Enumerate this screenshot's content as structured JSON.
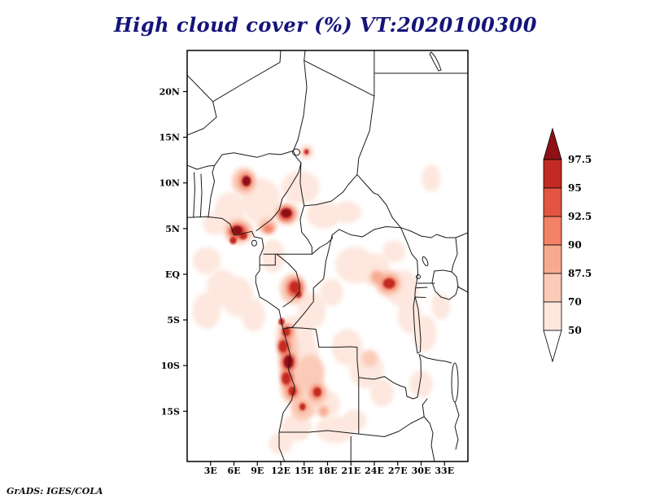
{
  "title": "High cloud cover (%) VT:2020100300",
  "footer": "GrADS: IGES/COLA",
  "colors": {
    "title_text": "#14147a",
    "border_lines": "#1a1a1a",
    "frame": "#000000"
  },
  "axes": {
    "x_ticks": [
      {
        "label": "3E",
        "lon": 3
      },
      {
        "label": "6E",
        "lon": 6
      },
      {
        "label": "9E",
        "lon": 9
      },
      {
        "label": "12E",
        "lon": 12
      },
      {
        "label": "15E",
        "lon": 15
      },
      {
        "label": "18E",
        "lon": 18
      },
      {
        "label": "21E",
        "lon": 21
      },
      {
        "label": "24E",
        "lon": 24
      },
      {
        "label": "27E",
        "lon": 27
      },
      {
        "label": "30E",
        "lon": 30
      },
      {
        "label": "33E",
        "lon": 33
      }
    ],
    "y_ticks": [
      {
        "label": "20N",
        "lat": 20
      },
      {
        "label": "15N",
        "lat": 15
      },
      {
        "label": "10N",
        "lat": 10
      },
      {
        "label": "5N",
        "lat": 5
      },
      {
        "label": "EQ",
        "lat": 0
      },
      {
        "label": "5S",
        "lat": -5
      },
      {
        "label": "10S",
        "lat": -10
      },
      {
        "label": "15S",
        "lat": -15
      }
    ]
  },
  "colorbar": {
    "labels": [
      "97.5",
      "95",
      "92.5",
      "90",
      "87.5",
      "70",
      "50"
    ]
  },
  "chart_data": {
    "type": "heatmap",
    "title": "High cloud cover (%) VT:2020100300",
    "variable": "High cloud cover",
    "units": "%",
    "valid_time": "2020100300",
    "lon_range": [
      0,
      36
    ],
    "lat_range": [
      -20.5,
      24.5
    ],
    "levels": [
      50,
      70,
      87.5,
      90,
      92.5,
      95,
      97.5
    ],
    "palette_low_to_high": [
      "#ffffff",
      "#fde7de",
      "#fbcbb8",
      "#f7aa8f",
      "#f28166",
      "#e35540",
      "#c22b24",
      "#8f1116"
    ],
    "hotspots": [
      {
        "lon": 14.5,
        "lat": 9.5,
        "rx": 2.5,
        "ry": 1.8,
        "v": 52
      },
      {
        "lon": 17.5,
        "lat": 6.5,
        "rx": 2.2,
        "ry": 1.5,
        "v": 55
      },
      {
        "lon": 20.5,
        "lat": 6.8,
        "rx": 1.8,
        "ry": 1.2,
        "v": 52
      },
      {
        "lon": 31.3,
        "lat": 10.5,
        "rx": 1.2,
        "ry": 1.5,
        "v": 52
      },
      {
        "lon": 21.5,
        "lat": 1.0,
        "rx": 2.5,
        "ry": 2.0,
        "v": 55
      },
      {
        "lon": 26.5,
        "lat": 2.5,
        "rx": 1.5,
        "ry": 1.2,
        "v": 52
      },
      {
        "lon": 2.5,
        "lat": 1.5,
        "rx": 1.8,
        "ry": 1.5,
        "v": 55
      },
      {
        "lon": 4.5,
        "lat": -1.5,
        "rx": 2.0,
        "ry": 2.0,
        "v": 55
      },
      {
        "lon": 2.5,
        "lat": -4.0,
        "rx": 1.8,
        "ry": 2.0,
        "v": 55
      },
      {
        "lon": 6.5,
        "lat": -2.5,
        "rx": 2.0,
        "ry": 2.2,
        "v": 58
      },
      {
        "lon": 8.5,
        "lat": -4.5,
        "rx": 1.5,
        "ry": 1.8,
        "v": 55
      },
      {
        "lon": 28.5,
        "lat": -4.5,
        "rx": 1.5,
        "ry": 2.0,
        "v": 52
      },
      {
        "lon": 30.5,
        "lat": -6.5,
        "rx": 1.5,
        "ry": 2.0,
        "v": 52
      },
      {
        "lon": 32.5,
        "lat": -3.5,
        "rx": 1.2,
        "ry": 1.5,
        "v": 52
      },
      {
        "lon": 30.0,
        "lat": -12.0,
        "rx": 1.5,
        "ry": 1.5,
        "v": 52
      },
      {
        "lon": 19.0,
        "lat": -17.0,
        "rx": 2.5,
        "ry": 1.5,
        "v": 55
      },
      {
        "lon": 14.0,
        "lat": -16.8,
        "rx": 2.0,
        "ry": 1.5,
        "v": 58
      },
      {
        "lon": 21.5,
        "lat": -16.0,
        "rx": 1.5,
        "ry": 1.2,
        "v": 52
      },
      {
        "lon": 12.0,
        "lat": -18.5,
        "rx": 1.5,
        "ry": 1.2,
        "v": 55
      },
      {
        "lon": 17.8,
        "lat": -14.2,
        "rx": 1.8,
        "ry": 1.5,
        "v": 58
      },
      {
        "lon": 20.5,
        "lat": -8.0,
        "rx": 2.0,
        "ry": 2.0,
        "v": 55
      },
      {
        "lon": 23.0,
        "lat": -10.5,
        "rx": 2.2,
        "ry": 2.0,
        "v": 58
      },
      {
        "lon": 25.0,
        "lat": -13.0,
        "rx": 1.5,
        "ry": 1.5,
        "v": 52
      },
      {
        "lon": 9.5,
        "lat": 8.0,
        "rx": 2.5,
        "ry": 2.5,
        "v": 55
      },
      {
        "lon": 5.5,
        "lat": 7.0,
        "rx": 2.0,
        "ry": 2.0,
        "v": 58
      },
      {
        "lon": 3.5,
        "lat": 5.5,
        "rx": 1.5,
        "ry": 1.2,
        "v": 55
      },
      {
        "lon": 11.0,
        "lat": 2.0,
        "rx": 1.5,
        "ry": 1.8,
        "v": 55
      },
      {
        "lon": 16.0,
        "lat": -4.0,
        "rx": 1.8,
        "ry": 2.0,
        "v": 58
      },
      {
        "lon": 18.5,
        "lat": -2.0,
        "rx": 1.5,
        "ry": 1.5,
        "v": 55
      },
      {
        "lon": 27.5,
        "lat": -1.5,
        "rx": 2.2,
        "ry": 2.0,
        "v": 60
      },
      {
        "lon": 24.0,
        "lat": 0.5,
        "rx": 2.0,
        "ry": 1.8,
        "v": 60
      },
      {
        "lon": 13.8,
        "lat": -6.5,
        "rx": 2.5,
        "ry": 2.0,
        "v": 62
      },
      {
        "lon": 14.8,
        "lat": -9.5,
        "rx": 2.2,
        "ry": 3.0,
        "v": 62
      },
      {
        "lon": 15.5,
        "lat": -13.5,
        "rx": 2.5,
        "ry": 2.0,
        "v": 62
      },
      {
        "lon": 7.3,
        "lat": 10.2,
        "rx": 1.6,
        "ry": 1.5,
        "v": 78
      },
      {
        "lon": 6.6,
        "lat": 4.7,
        "rx": 1.9,
        "ry": 1.4,
        "v": 80
      },
      {
        "lon": 12.8,
        "lat": 6.6,
        "rx": 1.5,
        "ry": 1.2,
        "v": 80
      },
      {
        "lon": 13.6,
        "lat": -1.6,
        "rx": 1.7,
        "ry": 1.7,
        "v": 80
      },
      {
        "lon": 25.8,
        "lat": -1.0,
        "rx": 1.7,
        "ry": 1.4,
        "v": 75
      },
      {
        "lon": 13.0,
        "lat": -9.0,
        "rx": 1.3,
        "ry": 3.5,
        "v": 80
      },
      {
        "lon": 13.6,
        "lat": -12.6,
        "rx": 1.6,
        "ry": 1.6,
        "v": 78
      },
      {
        "lon": 16.6,
        "lat": -13.0,
        "rx": 1.4,
        "ry": 1.4,
        "v": 75
      },
      {
        "lon": 14.8,
        "lat": -14.8,
        "rx": 1.5,
        "ry": 1.2,
        "v": 72
      },
      {
        "lon": 15.8,
        "lat": -10.8,
        "rx": 1.8,
        "ry": 2.0,
        "v": 70
      },
      {
        "lon": 10.3,
        "lat": 5.3,
        "rx": 1.2,
        "ry": 0.9,
        "v": 75
      },
      {
        "lon": 23.4,
        "lat": -9.2,
        "rx": 1.0,
        "ry": 0.9,
        "v": 72
      },
      {
        "lon": 15.3,
        "lat": 13.4,
        "rx": 0.8,
        "ry": 0.7,
        "v": 75
      },
      {
        "lon": 7.5,
        "lat": 10.2,
        "rx": 0.9,
        "ry": 0.9,
        "v": 91
      },
      {
        "lon": 6.5,
        "lat": 4.7,
        "rx": 1.2,
        "ry": 0.8,
        "v": 93
      },
      {
        "lon": 12.7,
        "lat": 6.6,
        "rx": 1.0,
        "ry": 0.8,
        "v": 93
      },
      {
        "lon": 13.8,
        "lat": -1.5,
        "rx": 1.0,
        "ry": 1.0,
        "v": 93
      },
      {
        "lon": 25.9,
        "lat": -1.0,
        "rx": 1.1,
        "ry": 0.8,
        "v": 91
      },
      {
        "lon": 12.8,
        "lat": -6.3,
        "rx": 0.8,
        "ry": 0.8,
        "v": 91
      },
      {
        "lon": 12.4,
        "lat": -7.9,
        "rx": 0.8,
        "ry": 0.9,
        "v": 93
      },
      {
        "lon": 13.0,
        "lat": -9.6,
        "rx": 0.9,
        "ry": 1.0,
        "v": 93
      },
      {
        "lon": 12.8,
        "lat": -11.4,
        "rx": 0.8,
        "ry": 0.9,
        "v": 93
      },
      {
        "lon": 13.5,
        "lat": -12.8,
        "rx": 0.8,
        "ry": 0.8,
        "v": 91
      },
      {
        "lon": 16.6,
        "lat": -12.9,
        "rx": 0.8,
        "ry": 0.8,
        "v": 91
      },
      {
        "lon": 14.8,
        "lat": -14.5,
        "rx": 0.7,
        "ry": 0.7,
        "v": 88
      },
      {
        "lon": 17.5,
        "lat": -15.0,
        "rx": 0.6,
        "ry": 0.6,
        "v": 88
      },
      {
        "lon": 10.4,
        "lat": 5.0,
        "rx": 0.7,
        "ry": 0.5,
        "v": 90
      },
      {
        "lon": 24.3,
        "lat": -0.3,
        "rx": 0.8,
        "ry": 0.7,
        "v": 88
      },
      {
        "lon": 7.6,
        "lat": 10.2,
        "rx": 0.55,
        "ry": 0.55,
        "v": 98
      },
      {
        "lon": 6.4,
        "lat": 4.8,
        "rx": 0.7,
        "ry": 0.5,
        "v": 98
      },
      {
        "lon": 7.2,
        "lat": 4.2,
        "rx": 0.5,
        "ry": 0.4,
        "v": 97
      },
      {
        "lon": 5.9,
        "lat": 3.7,
        "rx": 0.45,
        "ry": 0.4,
        "v": 97
      },
      {
        "lon": 12.7,
        "lat": 6.7,
        "rx": 0.7,
        "ry": 0.5,
        "v": 98
      },
      {
        "lon": 15.3,
        "lat": 13.4,
        "rx": 0.3,
        "ry": 0.3,
        "v": 96
      },
      {
        "lon": 13.8,
        "lat": -1.4,
        "rx": 0.6,
        "ry": 0.6,
        "v": 97
      },
      {
        "lon": 14.3,
        "lat": -2.2,
        "rx": 0.4,
        "ry": 0.4,
        "v": 96
      },
      {
        "lon": 25.9,
        "lat": -1.0,
        "rx": 0.75,
        "ry": 0.55,
        "v": 96
      },
      {
        "lon": 12.7,
        "lat": -6.3,
        "rx": 0.5,
        "ry": 0.5,
        "v": 96
      },
      {
        "lon": 12.3,
        "lat": -7.9,
        "rx": 0.5,
        "ry": 0.6,
        "v": 97
      },
      {
        "lon": 13.0,
        "lat": -9.6,
        "rx": 0.6,
        "ry": 0.7,
        "v": 98
      },
      {
        "lon": 12.7,
        "lat": -11.4,
        "rx": 0.5,
        "ry": 0.6,
        "v": 97
      },
      {
        "lon": 13.5,
        "lat": -12.8,
        "rx": 0.5,
        "ry": 0.5,
        "v": 96
      },
      {
        "lon": 16.7,
        "lat": -12.9,
        "rx": 0.5,
        "ry": 0.5,
        "v": 96
      },
      {
        "lon": 14.8,
        "lat": -14.5,
        "rx": 0.4,
        "ry": 0.4,
        "v": 95
      },
      {
        "lon": 12.1,
        "lat": -5.2,
        "rx": 0.4,
        "ry": 0.4,
        "v": 96
      }
    ]
  }
}
